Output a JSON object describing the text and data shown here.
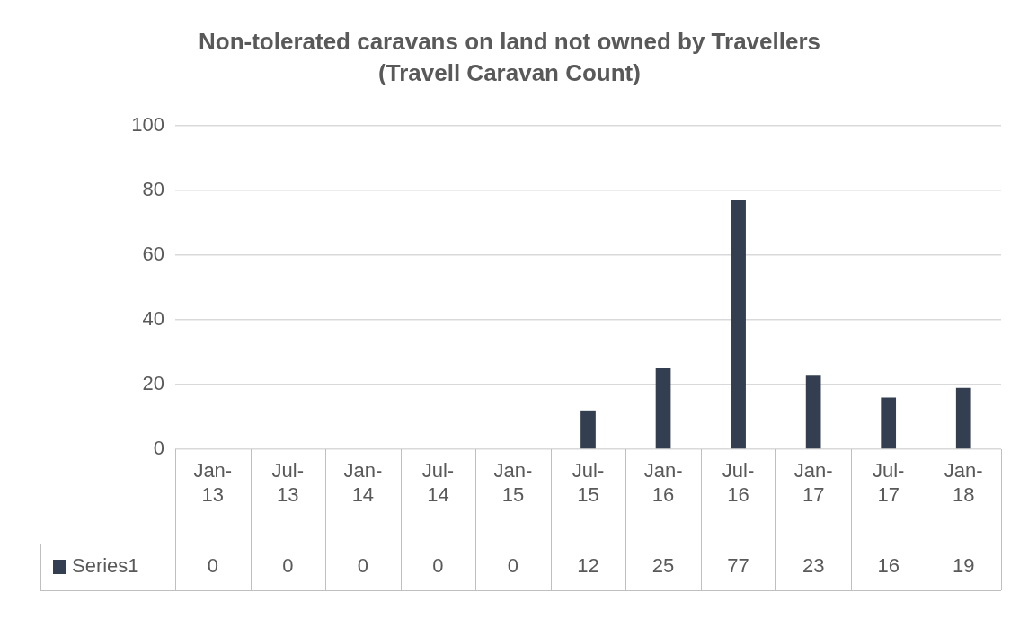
{
  "chart_data": {
    "type": "bar",
    "title": "Non-tolerated caravans on land not owned by Travellers\n(Travell Caravan Count)",
    "categories": [
      "Jan-13",
      "Jul-13",
      "Jan-14",
      "Jul-14",
      "Jan-15",
      "Jul-15",
      "Jan-16",
      "Jul-16",
      "Jan-17",
      "Jul-17",
      "Jan-18"
    ],
    "series": [
      {
        "name": "Series1",
        "color": "#333f50",
        "values": [
          0,
          0,
          0,
          0,
          0,
          12,
          25,
          77,
          23,
          16,
          19
        ]
      }
    ],
    "ylim": [
      0,
      100
    ],
    "yticks": [
      0,
      20,
      40,
      60,
      80,
      100
    ],
    "grid": "y",
    "data_labels": true,
    "legend": "bottom"
  }
}
